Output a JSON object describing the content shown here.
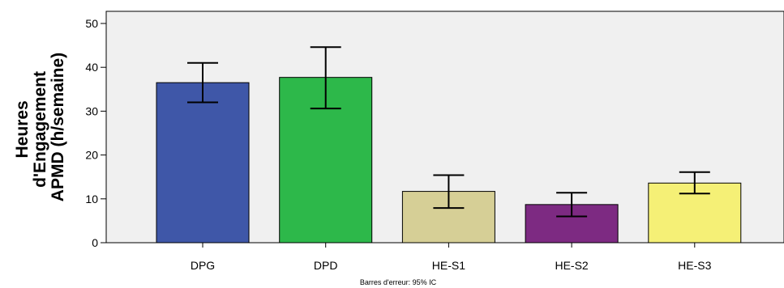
{
  "chart_data": {
    "type": "bar",
    "categories": [
      "DPG",
      "DPD",
      "HE-S1",
      "HE-S2",
      "HE-S3"
    ],
    "values": [
      36.5,
      37.7,
      11.7,
      8.7,
      13.6
    ],
    "error_low": [
      32.0,
      30.6,
      7.9,
      6.0,
      11.2
    ],
    "error_high": [
      41.0,
      44.6,
      15.4,
      11.4,
      16.1
    ],
    "colors": [
      "#3f57a8",
      "#2db84a",
      "#d6cf96",
      "#7d2a82",
      "#f5f076"
    ],
    "ylabel_lines": [
      "Heures",
      "d'Engagement",
      "APMD (h/semaine)"
    ],
    "xlabel": "",
    "ylim": [
      0,
      50
    ],
    "yticks": [
      "0",
      "10",
      "20",
      "30",
      "40",
      "50"
    ],
    "footnote": "Barres d'erreur: 95% IC",
    "plot_background": "#f0f0f0",
    "grid": false
  }
}
